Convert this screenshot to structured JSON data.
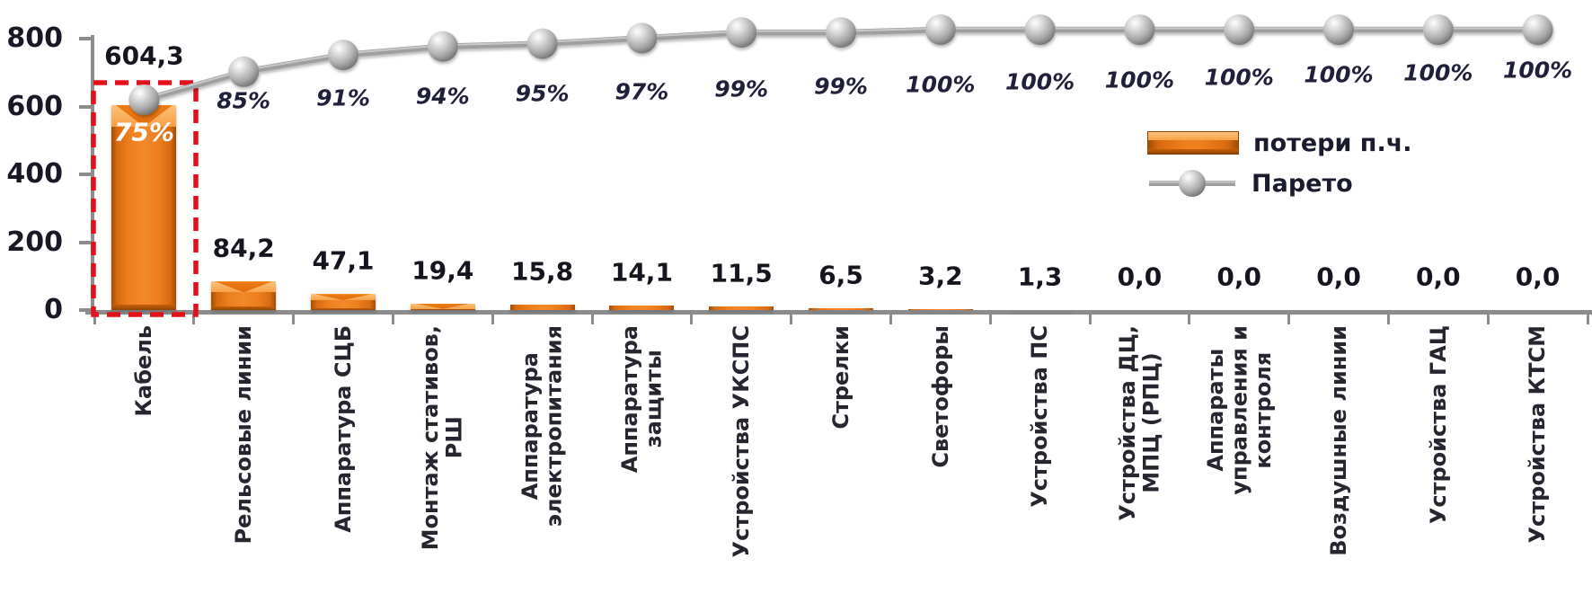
{
  "chart_data": {
    "type": "pareto",
    "title": "",
    "categories": [
      "Кабель",
      "Рельсовые линии",
      "Аппаратура СЦБ",
      "Монтаж стативов,\nРШ",
      "Аппаратура\nэлектропитания",
      "Аппаратура\nзащиты",
      "Устройства УКСПС",
      "Стрелки",
      "Светофоры",
      "Устройства ПС",
      "Устройства ДЦ,\nМПЦ (РПЦ)",
      "Аппараты\nуправления и\nконтроля",
      "Воздушные линии",
      "Устройства ГАЦ",
      "Устройства КТСМ"
    ],
    "series": [
      {
        "name": "потери п.ч.",
        "type": "bar",
        "values": [
          604.3,
          84.2,
          47.1,
          19.4,
          15.8,
          14.1,
          11.5,
          6.5,
          3.2,
          1.3,
          0,
          0,
          0,
          0,
          0
        ],
        "data_labels": [
          "604,3",
          "84,2",
          "47,1",
          "19,4",
          "15,8",
          "14,1",
          "11,5",
          "6,5",
          "3,2",
          "1,3",
          "0,0",
          "0,0",
          "0,0",
          "0,0",
          "0,0"
        ]
      },
      {
        "name": "Парето",
        "type": "line",
        "unit": "%",
        "values": [
          75,
          85,
          91,
          94,
          95,
          97,
          99,
          99,
          100,
          100,
          100,
          100,
          100,
          100,
          100
        ],
        "data_labels": [
          "75%",
          "85%",
          "91%",
          "94%",
          "95%",
          "97%",
          "99%",
          "99%",
          "100%",
          "100%",
          "100%",
          "100%",
          "100%",
          "100%",
          "100%"
        ],
        "first_label_inside_bar": true
      }
    ],
    "y_axis": {
      "min": 0,
      "max": 800,
      "ticks": [
        "0",
        "200",
        "400",
        "600",
        "800"
      ]
    },
    "secondary_axis": {
      "min": 0,
      "max": 100,
      "visible": false
    },
    "legend": {
      "position": "middle-right",
      "entries": [
        "потери п.ч.",
        "Парето"
      ]
    },
    "annotations": [
      {
        "type": "highlight-box",
        "target": "Кабель",
        "style": "red-dashed"
      }
    ],
    "grid": false
  },
  "colors": {
    "bar_main": "#ee7f1d",
    "bar_light": "#f9a74e",
    "bar_dark": "#a04e06",
    "pareto_line": "#9f9f9f",
    "marker_fill": "#c0c0c0",
    "highlight_box": "#e31119",
    "label_text": "#15151f",
    "pct_text": "#20203a",
    "pct_inside_text": "#ffffff",
    "axis": "#8c8c8c",
    "background": "#ffffff"
  }
}
